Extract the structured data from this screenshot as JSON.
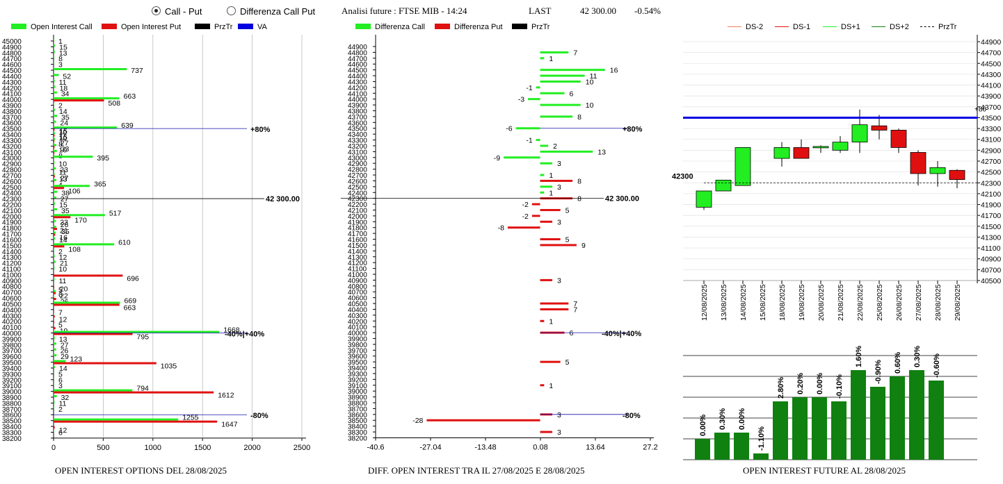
{
  "header": {
    "mode_call_put": "Call - Put",
    "mode_diff": "Differenza Call Put",
    "analysis_label": "Analisi future : FTSE MIB - 14:24",
    "last_label": "LAST",
    "last_value": "42 300.00",
    "last_change": "-0.54%"
  },
  "legend_left": [
    {
      "label": "Open Interest Call",
      "color": "#22ee22"
    },
    {
      "label": "Open Interest Put",
      "color": "#e01010"
    },
    {
      "label": "PrzTr",
      "color": "#000000"
    },
    {
      "label": "VA",
      "color": "#0000e0"
    }
  ],
  "legend_mid": [
    {
      "label": "Differenza Call",
      "color": "#22ee22"
    },
    {
      "label": "Differenza Put",
      "color": "#e01010"
    },
    {
      "label": "PrzTr",
      "color": "#000000"
    }
  ],
  "legend_right": [
    {
      "label": "DS-2",
      "color": "#f08060",
      "style": "solid"
    },
    {
      "label": "DS-1",
      "color": "#e01010",
      "style": "solid"
    },
    {
      "label": "DS+1",
      "color": "#22ee22",
      "style": "solid"
    },
    {
      "label": "DS+2",
      "color": "#108010",
      "style": "solid"
    },
    {
      "label": "PrzTr",
      "color": "#000000",
      "style": "dashed"
    }
  ],
  "titles": {
    "left": "OPEN INTEREST OPTIONS DEL 28/08/2025",
    "mid": "DIFF. OPEN INTEREST TRA IL 27/08/2025 E 28/08/2025",
    "right": "OPEN INTEREST FUTURE AL 28/08/2025"
  },
  "colors": {
    "call": "#22ee22",
    "put": "#e01010",
    "va": "#0000e0",
    "dark_green": "#108010"
  },
  "chart_data": [
    {
      "type": "bar",
      "orientation": "horizontal",
      "strikes": [
        45000,
        44900,
        44800,
        44700,
        44600,
        44500,
        44400,
        44300,
        44200,
        44100,
        44000,
        43900,
        43800,
        43700,
        43600,
        43500,
        43400,
        43300,
        43200,
        43100,
        43000,
        42900,
        42800,
        42700,
        42600,
        42500,
        42400,
        42300,
        42200,
        42100,
        42000,
        41900,
        41800,
        41700,
        41600,
        41500,
        41400,
        41300,
        41200,
        41100,
        41000,
        40900,
        40800,
        40700,
        40600,
        40500,
        40400,
        40300,
        40200,
        40100,
        40000,
        39900,
        39800,
        39700,
        39600,
        39500,
        39400,
        39300,
        39200,
        39100,
        39000,
        38900,
        38800,
        38700,
        38600,
        38500,
        38400,
        38300,
        38200
      ],
      "series": [
        {
          "name": "Open Interest Call",
          "values": [
            1,
            15,
            13,
            8,
            3,
            737,
            52,
            11,
            18,
            34,
            663,
            2,
            14,
            35,
            24,
            639,
            15,
            15,
            27,
            33,
            395,
            10,
            23,
            11,
            27,
            365,
            38,
            27,
            15,
            35,
            517,
            23,
            26,
            21,
            14,
            610,
            2,
            12,
            21,
            10,
            0,
            11,
            0,
            20,
            6,
            669,
            0,
            7,
            0,
            0,
            1668,
            13,
            27,
            26,
            29,
            123,
            14,
            5,
            6,
            3,
            794,
            32,
            11,
            2,
            0,
            1255,
            0,
            6,
            0
          ]
        },
        {
          "name": "Open Interest Put",
          "values": [
            0,
            0,
            0,
            0,
            0,
            0,
            0,
            0,
            0,
            0,
            508,
            0,
            0,
            0,
            0,
            10,
            10,
            8,
            10,
            8,
            0,
            0,
            0,
            13,
            4,
            106,
            0,
            0,
            0,
            0,
            170,
            0,
            35,
            16,
            0,
            108,
            0,
            0,
            0,
            0,
            696,
            0,
            5,
            22,
            26,
            663,
            0,
            12,
            5,
            19,
            795,
            0,
            0,
            0,
            0,
            1035,
            0,
            0,
            0,
            0,
            1612,
            0,
            0,
            0,
            0,
            1647,
            12,
            0,
            0
          ]
        }
      ],
      "przTr": 42300,
      "przTr_label": "42 300.00",
      "va_lines": [
        {
          "strike": 43500,
          "label": "+80%"
        },
        {
          "strike": 40000,
          "label": "-40%|+40%"
        },
        {
          "strike": 38600,
          "label": "-80%"
        }
      ],
      "xticks": [
        0,
        500,
        1000,
        1500,
        2000,
        2500
      ],
      "xlim": [
        0,
        2500
      ]
    },
    {
      "type": "bar",
      "orientation": "horizontal",
      "strikes": [
        44900,
        44800,
        44700,
        44600,
        44500,
        44400,
        44300,
        44200,
        44100,
        44000,
        43900,
        43800,
        43700,
        43600,
        43500,
        43400,
        43300,
        43200,
        43100,
        43000,
        42900,
        42800,
        42700,
        42600,
        42500,
        42400,
        42300,
        42200,
        42100,
        42000,
        41900,
        41800,
        41700,
        41600,
        41500,
        41400,
        41300,
        41200,
        41100,
        41000,
        40900,
        40800,
        40700,
        40600,
        40500,
        40400,
        40300,
        40200,
        40100,
        40000,
        39900,
        39800,
        39700,
        39600,
        39500,
        39400,
        39300,
        39200,
        39100,
        39000,
        38900,
        38800,
        38700,
        38600,
        38500,
        38400,
        38300,
        38200
      ],
      "diff_call": {
        "44800": 7,
        "44700": 1,
        "44500": 16,
        "44400": 11,
        "44300": 10,
        "44200": -1,
        "44100": 6,
        "44000": -3,
        "43900": 10,
        "43700": 8,
        "43500": -6,
        "43300": -1,
        "43200": 2,
        "43100": 13,
        "43000": -9,
        "42900": 3,
        "42700": 1,
        "42500": 3,
        "42400": 1
      },
      "diff_put": {
        "42600": 8,
        "42300": 8,
        "42200": -2,
        "42100": 5,
        "42000": -2,
        "41900": 3,
        "41800": -8,
        "41600": 5,
        "41500": 9,
        "40900": 3,
        "40500": 7,
        "40400": 7,
        "40200": 1,
        "40000": 6,
        "39500": 5,
        "39100": 1,
        "38600": 3,
        "38500": -28,
        "38300": 3
      },
      "call_at_1500": -1,
      "call_at_1800": 1,
      "przTr": 42300,
      "przTr_label": "42 300.00",
      "va_lines": [
        {
          "strike": 43500,
          "label": "+80%"
        },
        {
          "strike": 40000,
          "label": "-40%|+40%"
        },
        {
          "strike": 38600,
          "label": "-80%"
        }
      ],
      "xticks": [
        "-40.6",
        "-27.04",
        "-13.48",
        "0.08",
        "13.64",
        "27.2"
      ],
      "xlim": [
        -40.6,
        27.2
      ]
    },
    {
      "type": "candlestick",
      "dates": [
        "12/08/2025",
        "13/08/2025",
        "14/08/2025",
        "15/08/2025",
        "18/08/2025",
        "19/08/2025",
        "20/08/2025",
        "21/08/2025",
        "22/08/2025",
        "25/08/2025",
        "26/08/2025",
        "27/08/2025",
        "28/08/2025",
        "29/08/2025"
      ],
      "ohlc": [
        [
          41850,
          42150,
          41800,
          42150
        ],
        [
          42150,
          42350,
          42150,
          42350
        ],
        [
          42250,
          42950,
          42250,
          42950
        ],
        null,
        [
          42750,
          43050,
          42600,
          42950
        ],
        [
          42950,
          43100,
          42750,
          42750
        ],
        [
          42950,
          42990,
          42850,
          42970
        ],
        [
          42900,
          43160,
          42850,
          43050
        ],
        [
          43050,
          43650,
          42850,
          43370
        ],
        [
          43350,
          43550,
          43100,
          43270
        ],
        [
          43270,
          43300,
          42850,
          42950
        ],
        [
          42860,
          42900,
          42250,
          42470
        ],
        [
          42470,
          42700,
          42230,
          42580
        ],
        [
          42530,
          42550,
          42200,
          42360
        ]
      ],
      "przTr": 42300,
      "przTr_label": "42300",
      "blue_line": 43500,
      "blue_label": "+80",
      "yticks": [
        44900,
        44700,
        44500,
        44300,
        44100,
        43900,
        43700,
        43500,
        43300,
        43100,
        42900,
        42700,
        42500,
        42300,
        42100,
        41900,
        41700,
        41500,
        41300,
        41100,
        40900,
        40700,
        40500
      ],
      "ylim": [
        40500,
        44900
      ]
    },
    {
      "type": "bar",
      "values": [
        1.0,
        1.3,
        1.3,
        0.3,
        2.8,
        3.0,
        3.0,
        2.8,
        4.3,
        3.5,
        4.0,
        4.3,
        3.8
      ],
      "labels": [
        "0.00%",
        "0.30%",
        "0.00%",
        "-1.10%",
        "2.80%",
        "0.20%",
        "0.00%",
        "-0.10%",
        "1.60%",
        "-0.90%",
        "0.60%",
        "0.30%",
        "-0.60%"
      ]
    }
  ]
}
